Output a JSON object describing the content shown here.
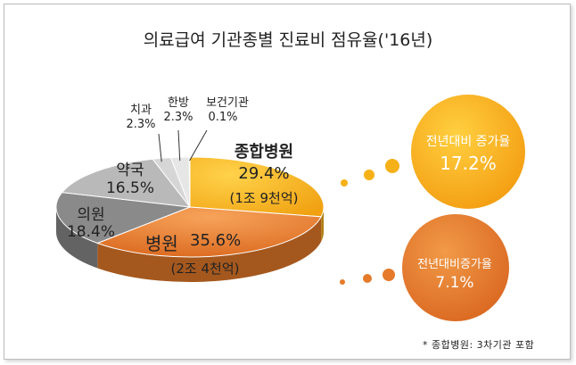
{
  "chart_data": {
    "type": "pie",
    "title": "의료급여 기관종별 진료비 점유율('16년)",
    "slices": [
      {
        "name": "종합병원",
        "value": 29.4,
        "value_label": "29.4%",
        "note": "(1조 9천억)",
        "color": "#f6b118"
      },
      {
        "name": "병원",
        "value": 35.6,
        "value_label": "35.6%",
        "note": "(2조 4천억)",
        "color": "#e57a2a"
      },
      {
        "name": "의원",
        "value": 18.4,
        "value_label": "18.4%",
        "note": "",
        "color": "#8a8a8a"
      },
      {
        "name": "약국",
        "value": 16.5,
        "value_label": "16.5%",
        "note": "",
        "color": "#b9b9b9"
      },
      {
        "name": "치과",
        "value": 2.3,
        "value_label": "2.3%",
        "note": "",
        "color": "#d6d6d6"
      },
      {
        "name": "한방",
        "value": 2.3,
        "value_label": "2.3%",
        "note": "",
        "color": "#e6e6e6"
      },
      {
        "name": "보건기관",
        "value": 0.1,
        "value_label": "0.1%",
        "note": "",
        "color": "#f2f2f2"
      }
    ],
    "annotations": [
      {
        "label": "전년대비 증가율",
        "value": "17.2%",
        "color": "#f6b118"
      },
      {
        "label": "전년대비증가율",
        "value": "7.1%",
        "color": "#e57a2a"
      }
    ],
    "footnote": "* 종합병원: 3차기관 포함"
  }
}
